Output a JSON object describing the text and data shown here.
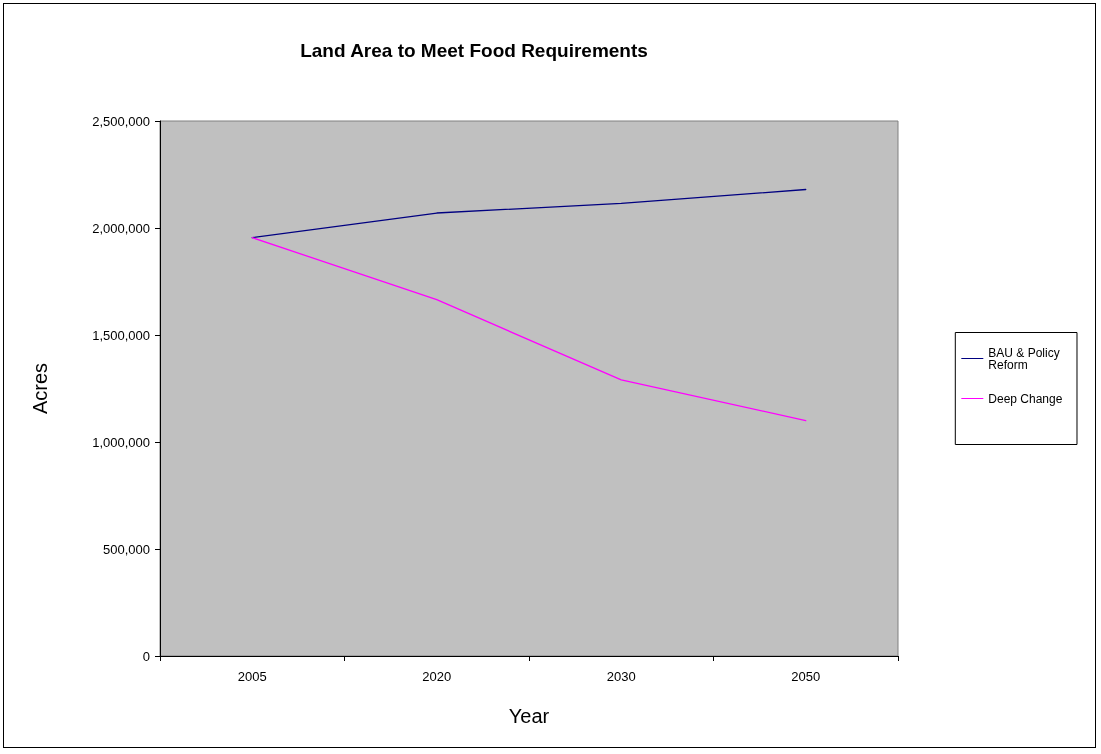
{
  "chart_data": {
    "type": "line",
    "title": "Land Area to Meet Food Requirements",
    "xlabel": "Year",
    "ylabel": "Acres",
    "categories": [
      "2005",
      "2020",
      "2030",
      "2050"
    ],
    "series": [
      {
        "name": "BAU & Policy Reform",
        "color": "#000080",
        "values": [
          1955000,
          2070000,
          2115000,
          2180000
        ]
      },
      {
        "name": "Deep Change",
        "color": "#ff00ff",
        "values": [
          1955000,
          1665000,
          1290000,
          1100000
        ]
      }
    ],
    "ylim": [
      0,
      2500000
    ],
    "yticks": [
      0,
      {
        "value": 500000,
        "label": "500,000"
      },
      {
        "value": 1000000,
        "label": "1,000,000"
      },
      {
        "value": 1500000,
        "label": "1,500,000"
      },
      {
        "value": 2000000,
        "label": "2,000,000"
      },
      {
        "value": 2500000,
        "label": "2,500,000"
      }
    ],
    "grid": false,
    "legend": "right",
    "marker": "none",
    "line_style": "solid"
  }
}
